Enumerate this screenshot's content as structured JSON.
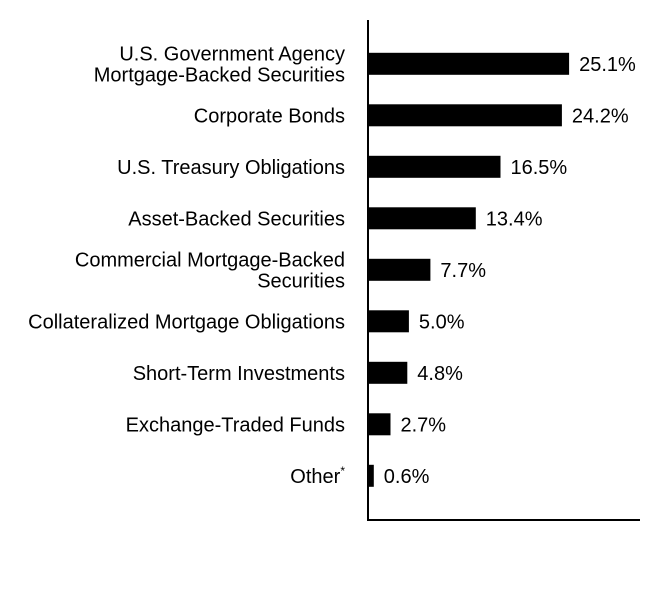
{
  "chart_data": {
    "type": "bar",
    "orientation": "horizontal",
    "categories": [
      [
        "U.S. Government Agency",
        "Mortgage-Backed Securities"
      ],
      [
        "Corporate Bonds"
      ],
      [
        "U.S. Treasury Obligations"
      ],
      [
        "Asset-Backed Securities"
      ],
      [
        "Commercial Mortgage-Backed",
        "Securities"
      ],
      [
        "Collateralized Mortgage Obligations"
      ],
      [
        "Short-Term Investments"
      ],
      [
        "Exchange-Traded Funds"
      ],
      [
        "Other"
      ]
    ],
    "category_footnote_marks": [
      "",
      "",
      "",
      "",
      "",
      "",
      "",
      "",
      "*"
    ],
    "values": [
      25.1,
      24.2,
      16.5,
      13.4,
      7.7,
      5.0,
      4.8,
      2.7,
      0.6
    ],
    "value_labels": [
      "25.1%",
      "24.2%",
      "16.5%",
      "13.4%",
      "7.7%",
      "5.0%",
      "4.8%",
      "2.7%",
      "0.6%"
    ],
    "title": "",
    "xlabel": "",
    "ylabel": "",
    "xlim": [
      0,
      34
    ],
    "grid": false,
    "legend": "none",
    "bar_color": "#000000"
  }
}
